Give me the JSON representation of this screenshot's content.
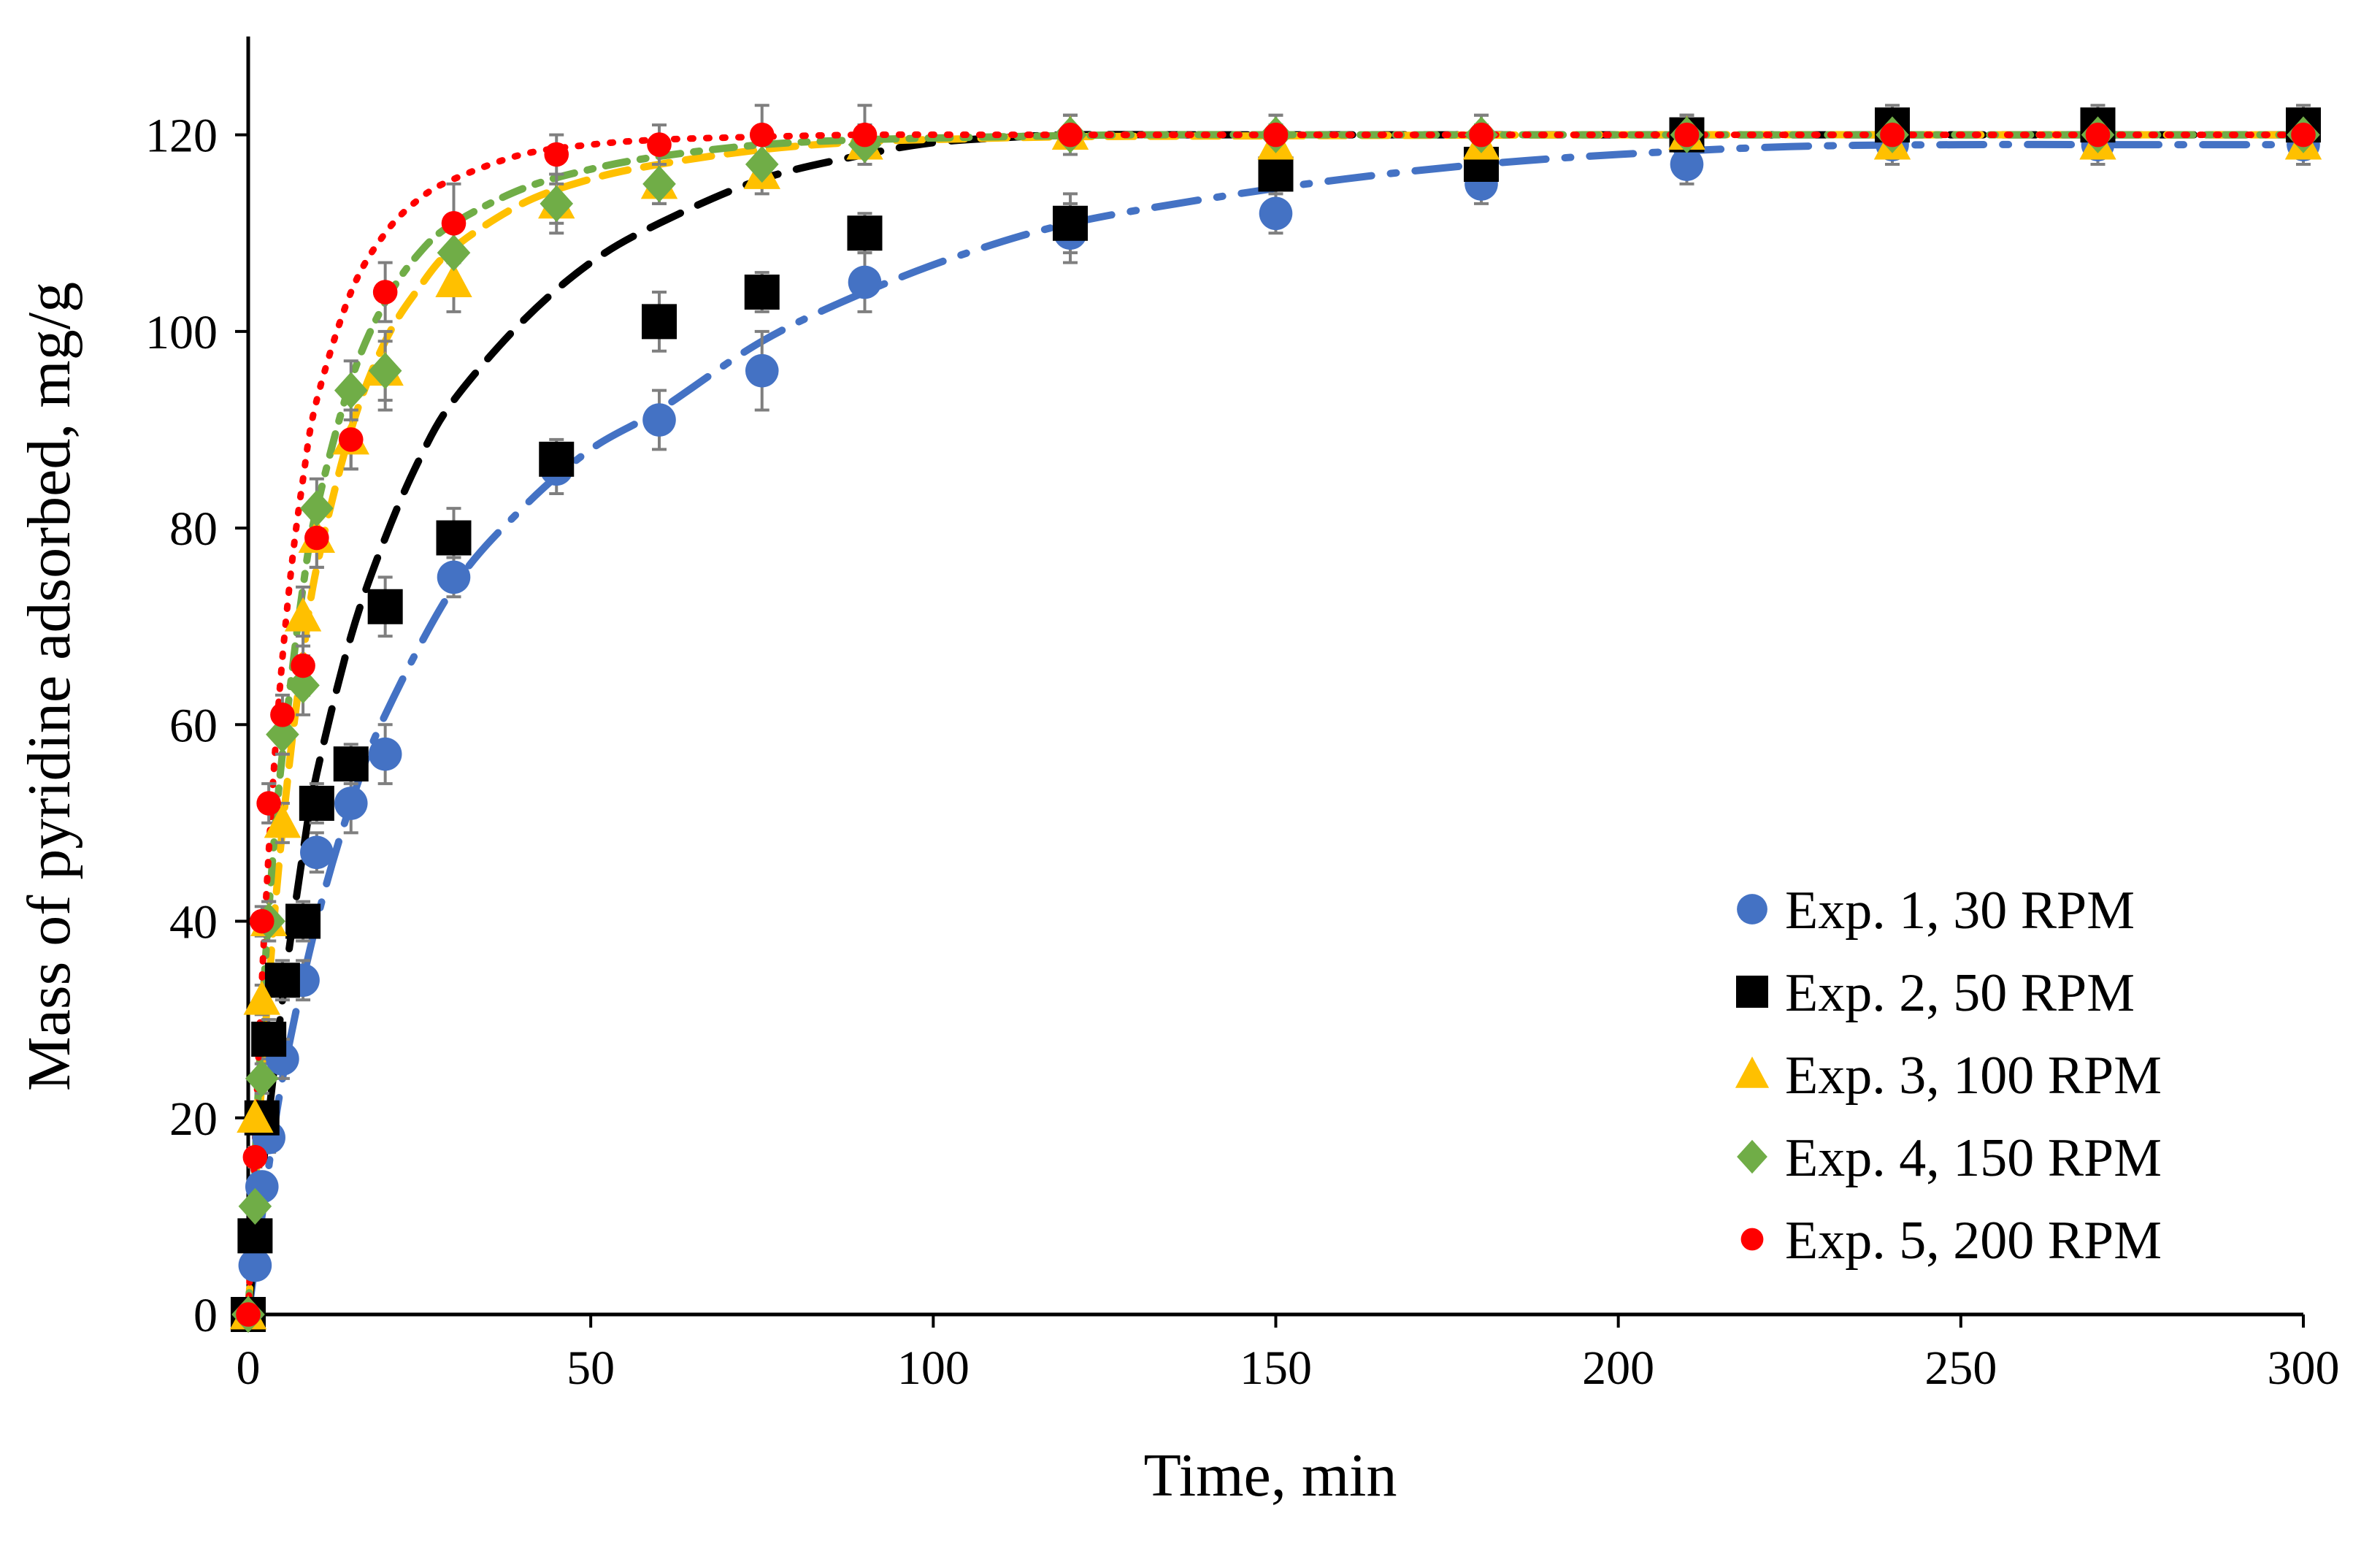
{
  "chart_data": {
    "type": "scatter",
    "title": "",
    "xlabel": "Time, min",
    "ylabel": "Mass of pyridine adsorbed, mg/g",
    "xlim": [
      0,
      300
    ],
    "ylim": [
      0,
      130
    ],
    "xticks": [
      0,
      50,
      100,
      150,
      200,
      250,
      300
    ],
    "yticks": [
      0,
      20,
      40,
      60,
      80,
      100,
      120
    ],
    "legend_position": "bottom-right",
    "series": [
      {
        "name": "Exp. 1, 30 RPM",
        "color": "#4472C4",
        "marker": "circle",
        "line_style": "long-dash-dot",
        "x": [
          0,
          1,
          2,
          3,
          5,
          8,
          10,
          15,
          20,
          30,
          45,
          60,
          75,
          90,
          120,
          150,
          180,
          210,
          240,
          270,
          300
        ],
        "y": [
          0,
          5,
          13,
          18,
          26,
          34,
          47,
          52,
          57,
          75,
          86,
          91,
          96,
          105,
          110,
          112,
          115,
          117,
          119,
          119,
          119
        ],
        "error": [
          0,
          1,
          1,
          1.5,
          2,
          2,
          2,
          3,
          3,
          2,
          2.5,
          3,
          4,
          3,
          3,
          2,
          2,
          2,
          2,
          2,
          2
        ],
        "fit_x": [
          0,
          2,
          5,
          10,
          15,
          20,
          30,
          40,
          50,
          60,
          75,
          90,
          105,
          120,
          140,
          160,
          180,
          200,
          225,
          250,
          275,
          300
        ],
        "fit_y": [
          0,
          10,
          24,
          40,
          52,
          61,
          74,
          82,
          88,
          92,
          99,
          104,
          108,
          111,
          113.5,
          115.5,
          117,
          118,
          118.8,
          119,
          119,
          119
        ]
      },
      {
        "name": "Exp. 2, 50 RPM",
        "color": "#000000",
        "marker": "square",
        "line_style": "long-dash",
        "x": [
          0,
          1,
          2,
          3,
          5,
          8,
          10,
          15,
          20,
          30,
          45,
          60,
          75,
          90,
          120,
          150,
          180,
          210,
          240,
          270,
          300
        ],
        "y": [
          0,
          8,
          20,
          28,
          34,
          40,
          52,
          56,
          72,
          79,
          87,
          101,
          104,
          110,
          111,
          116,
          117,
          120,
          121,
          121,
          121
        ],
        "error": [
          0,
          1,
          1.5,
          2,
          2,
          2,
          2,
          2,
          3,
          3,
          2,
          3,
          2,
          2,
          3,
          3,
          2,
          2,
          2,
          2,
          2
        ],
        "fit_x": [
          0,
          2,
          5,
          8,
          10,
          15,
          20,
          25,
          30,
          40,
          50,
          60,
          75,
          90,
          100,
          110,
          120,
          140,
          160,
          200,
          250,
          300
        ],
        "fit_y": [
          0,
          14,
          32,
          47,
          55,
          69,
          79,
          87,
          93,
          101,
          107,
          111,
          115.5,
          118,
          119.2,
          119.7,
          120,
          120,
          120,
          120,
          120,
          120
        ]
      },
      {
        "name": "Exp. 3, 100 RPM",
        "color": "#FFC000",
        "marker": "triangle",
        "line_style": "dash",
        "x": [
          0,
          1,
          2,
          3,
          5,
          8,
          10,
          15,
          20,
          30,
          45,
          60,
          75,
          90,
          120,
          150,
          180,
          210,
          240,
          270,
          300
        ],
        "y": [
          0,
          20,
          32,
          40,
          50,
          71,
          79,
          89,
          96,
          105,
          113,
          115,
          116,
          119,
          120,
          119,
          119,
          120,
          119,
          119,
          119
        ],
        "error": [
          0,
          1,
          1.5,
          2,
          2,
          3,
          3,
          3,
          4,
          3,
          3,
          2,
          2,
          2,
          2,
          2,
          2,
          2,
          2,
          2,
          2
        ],
        "fit_x": [
          0,
          2,
          4,
          6,
          8,
          10,
          15,
          20,
          25,
          30,
          40,
          50,
          60,
          75,
          90,
          105,
          120,
          150,
          200,
          250,
          300
        ],
        "fit_y": [
          0,
          24,
          42,
          56,
          67,
          76,
          90,
          99,
          104.5,
          108.5,
          113,
          115.5,
          117,
          118.5,
          119.3,
          119.6,
          119.8,
          119.9,
          120,
          120,
          120
        ]
      },
      {
        "name": "Exp. 4, 150 RPM",
        "color": "#70AD47",
        "marker": "diamond",
        "line_style": "dash-dot",
        "x": [
          0,
          1,
          2,
          3,
          5,
          8,
          10,
          15,
          20,
          30,
          45,
          60,
          75,
          90,
          120,
          150,
          180,
          210,
          240,
          270,
          300
        ],
        "y": [
          0,
          11,
          24,
          40,
          59,
          64,
          82,
          94,
          96,
          108,
          113,
          115,
          117,
          119,
          120,
          120,
          120,
          120,
          120,
          120,
          120
        ],
        "error": [
          0,
          1,
          1.5,
          2,
          2,
          3,
          3,
          3,
          3,
          3,
          2,
          2,
          2,
          2,
          2,
          2,
          2,
          2,
          2,
          2,
          2
        ],
        "fit_x": [
          0,
          2,
          4,
          6,
          8,
          10,
          15,
          20,
          25,
          30,
          40,
          50,
          60,
          75,
          90,
          110,
          130,
          160,
          200,
          250,
          300
        ],
        "fit_y": [
          0,
          30,
          50,
          63,
          74,
          82,
          95,
          103,
          108,
          111,
          114.5,
          116.5,
          117.8,
          119,
          119.5,
          119.8,
          120,
          120,
          120,
          120,
          120
        ]
      },
      {
        "name": "Exp. 5, 200 RPM",
        "color": "#FF0000",
        "marker": "circle-small",
        "line_style": "dot",
        "x": [
          0,
          1,
          2,
          3,
          5,
          8,
          10,
          15,
          20,
          30,
          45,
          60,
          75,
          90,
          120,
          150,
          180,
          210,
          240,
          270,
          300
        ],
        "y": [
          0,
          16,
          40,
          52,
          61,
          66,
          79,
          89,
          104,
          111,
          118,
          119,
          120,
          120,
          120,
          120,
          120,
          120,
          120,
          120,
          120
        ],
        "error": [
          0,
          1,
          1.5,
          2,
          2,
          3,
          3,
          3,
          3,
          4,
          2,
          2,
          3,
          3,
          2,
          2,
          2,
          2,
          2,
          2,
          2
        ],
        "fit_x": [
          0,
          2,
          4,
          6,
          8,
          10,
          15,
          20,
          25,
          30,
          40,
          50,
          60,
          75,
          90,
          110,
          130,
          160,
          200,
          250,
          300
        ],
        "fit_y": [
          0,
          34,
          58,
          74,
          85,
          93,
          104,
          110,
          113.5,
          115.5,
          118,
          119,
          119.5,
          119.8,
          120,
          120,
          120,
          120,
          120,
          120,
          120
        ]
      }
    ]
  }
}
